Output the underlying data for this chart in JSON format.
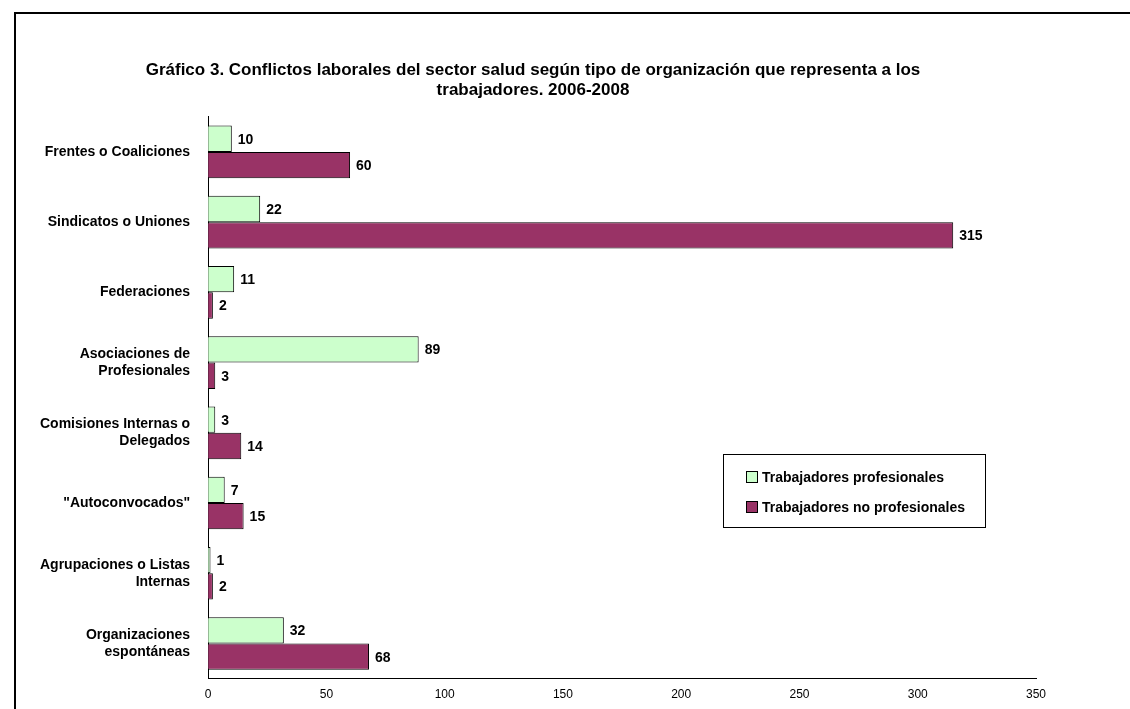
{
  "chart_data": {
    "type": "bar",
    "orientation": "horizontal",
    "title": "Gráfico 3. Conflictos laborales del sector salud según tipo de organización que representa a los trabajadores. 2006-2008",
    "categories": [
      "Frentes o Coaliciones",
      "Sindicatos o Uniones",
      "Federaciones",
      "Asociaciones de Profesionales",
      "Comisiones Internas o Delegados",
      "\"Autoconvocados\"",
      "Agrupaciones o Listas Internas",
      "Organizaciones espontáneas"
    ],
    "series": [
      {
        "name": "Trabajadores profesionales",
        "color": "#ccffcc",
        "values": [
          10,
          22,
          11,
          89,
          3,
          7,
          1,
          32
        ]
      },
      {
        "name": "Trabajadores no profesionales",
        "color": "#993366",
        "values": [
          60,
          315,
          2,
          3,
          14,
          15,
          2,
          68
        ]
      }
    ],
    "xlim": [
      0,
      350
    ],
    "xticks": [
      0,
      50,
      100,
      150,
      200,
      250,
      300,
      350
    ],
    "grid": false,
    "legend": "right",
    "data_labels": true
  }
}
